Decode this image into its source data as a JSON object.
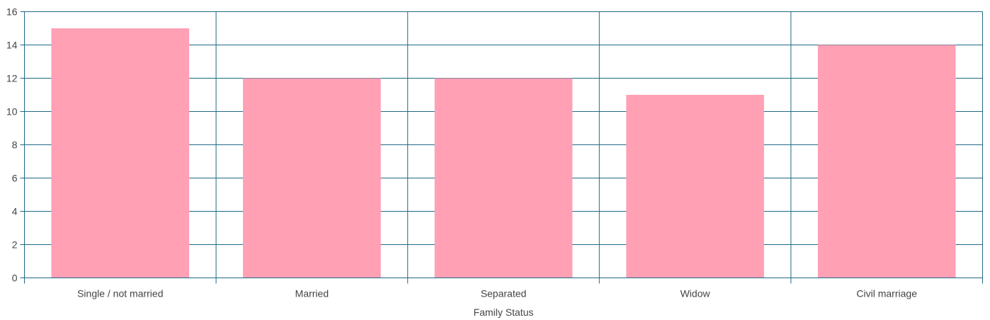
{
  "chart_data": {
    "type": "bar",
    "categories": [
      "Single / not married",
      "Married",
      "Separated",
      "Widow",
      "Civil marriage"
    ],
    "values": [
      15,
      12,
      12,
      11,
      14
    ],
    "xlabel": "Family Status",
    "ylabel": "",
    "ylim": [
      0,
      16
    ],
    "yticks": [
      0,
      2,
      4,
      6,
      8,
      10,
      12,
      14,
      16
    ],
    "grid": true,
    "colors": {
      "bar": "#ffa0b4",
      "grid": "#1f6a86",
      "text": "#444444"
    }
  }
}
